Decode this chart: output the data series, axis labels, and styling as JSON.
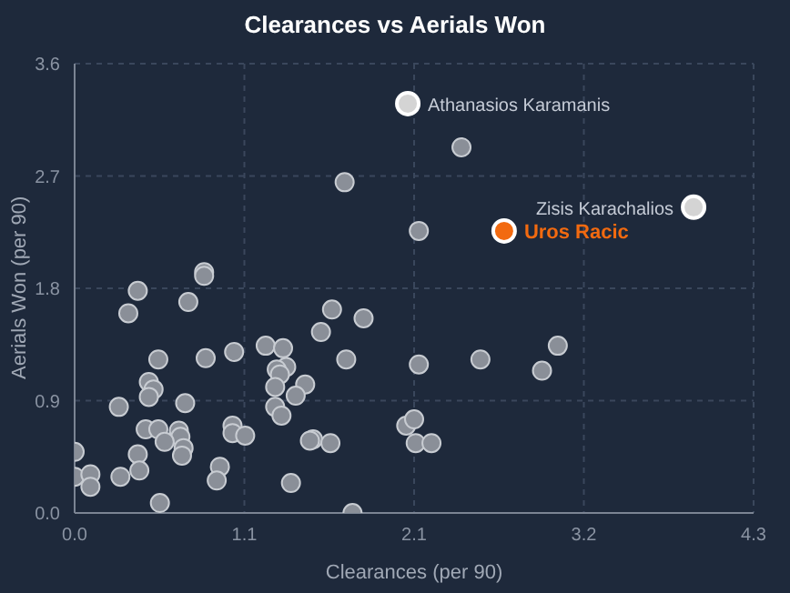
{
  "chart_data": {
    "type": "scatter",
    "title": "Clearances vs Aerials Won",
    "xlabel": "Clearances (per 90)",
    "ylabel": "Aerials Won (per 90)",
    "xlim": [
      0,
      4.3
    ],
    "ylim": [
      0,
      3.6
    ],
    "xticks": [
      {
        "value": 0,
        "label": "0.0"
      },
      {
        "value": 1.075,
        "label": "1.1"
      },
      {
        "value": 2.15,
        "label": "2.1"
      },
      {
        "value": 3.225,
        "label": "3.2"
      },
      {
        "value": 4.3,
        "label": "4.3"
      }
    ],
    "yticks": [
      {
        "value": 0,
        "label": "0.0"
      },
      {
        "value": 0.9,
        "label": "0.9"
      },
      {
        "value": 1.8,
        "label": "1.8"
      },
      {
        "value": 2.7,
        "label": "2.7"
      },
      {
        "value": 3.6,
        "label": "3.6"
      }
    ],
    "grid": true,
    "legend": false,
    "marker": "circle",
    "series": [
      {
        "color": "#8a8f98",
        "x": [
          0.4,
          0.34,
          0.72,
          0.82,
          0.82,
          1.63,
          1.83,
          1.56,
          1.21,
          1.32,
          1.01,
          0.53,
          0.83,
          1.72,
          2.18,
          1.34,
          1.28,
          1.3,
          1.27,
          1.46,
          1.4,
          0.47,
          0.5,
          0.47,
          0.7,
          0.28,
          1.27,
          1.31,
          1.0,
          1.0,
          1.08,
          0.45,
          0.53,
          0.66,
          0.67,
          0.57,
          0.69,
          0.68,
          1.51,
          1.49,
          1.62,
          2.1,
          2.15,
          2.16,
          2.26,
          0.0,
          0.0,
          0.1,
          0.1,
          0.29,
          0.4,
          0.41,
          0.92,
          0.9,
          1.37,
          0.54,
          1.76,
          2.57,
          2.96,
          3.06,
          1.71,
          2.18,
          2.45
        ],
        "values": [
          1.78,
          1.6,
          1.69,
          1.93,
          1.9,
          1.63,
          1.56,
          1.45,
          1.34,
          1.32,
          1.29,
          1.23,
          1.24,
          1.23,
          1.19,
          1.17,
          1.15,
          1.11,
          1.01,
          1.03,
          0.94,
          1.05,
          0.99,
          0.93,
          0.88,
          0.85,
          0.85,
          0.78,
          0.7,
          0.64,
          0.62,
          0.67,
          0.67,
          0.66,
          0.61,
          0.57,
          0.52,
          0.46,
          0.59,
          0.58,
          0.56,
          0.7,
          0.75,
          0.56,
          0.56,
          0.49,
          0.29,
          0.31,
          0.21,
          0.29,
          0.47,
          0.34,
          0.37,
          0.26,
          0.24,
          0.08,
          0.0,
          1.23,
          1.14,
          1.34,
          2.65,
          2.26,
          2.93
        ]
      },
      {
        "name": "Athanasios Karamanis",
        "color": "#d4d4d4",
        "x": [
          2.11
        ],
        "values": [
          3.28
        ]
      },
      {
        "name": "Zisis Karachalios",
        "color": "#d4d4d4",
        "x": [
          3.92
        ],
        "values": [
          2.45
        ]
      },
      {
        "name": "Uros Racic",
        "color": "#f26a10",
        "x": [
          2.72
        ],
        "values": [
          2.26
        ]
      }
    ]
  }
}
